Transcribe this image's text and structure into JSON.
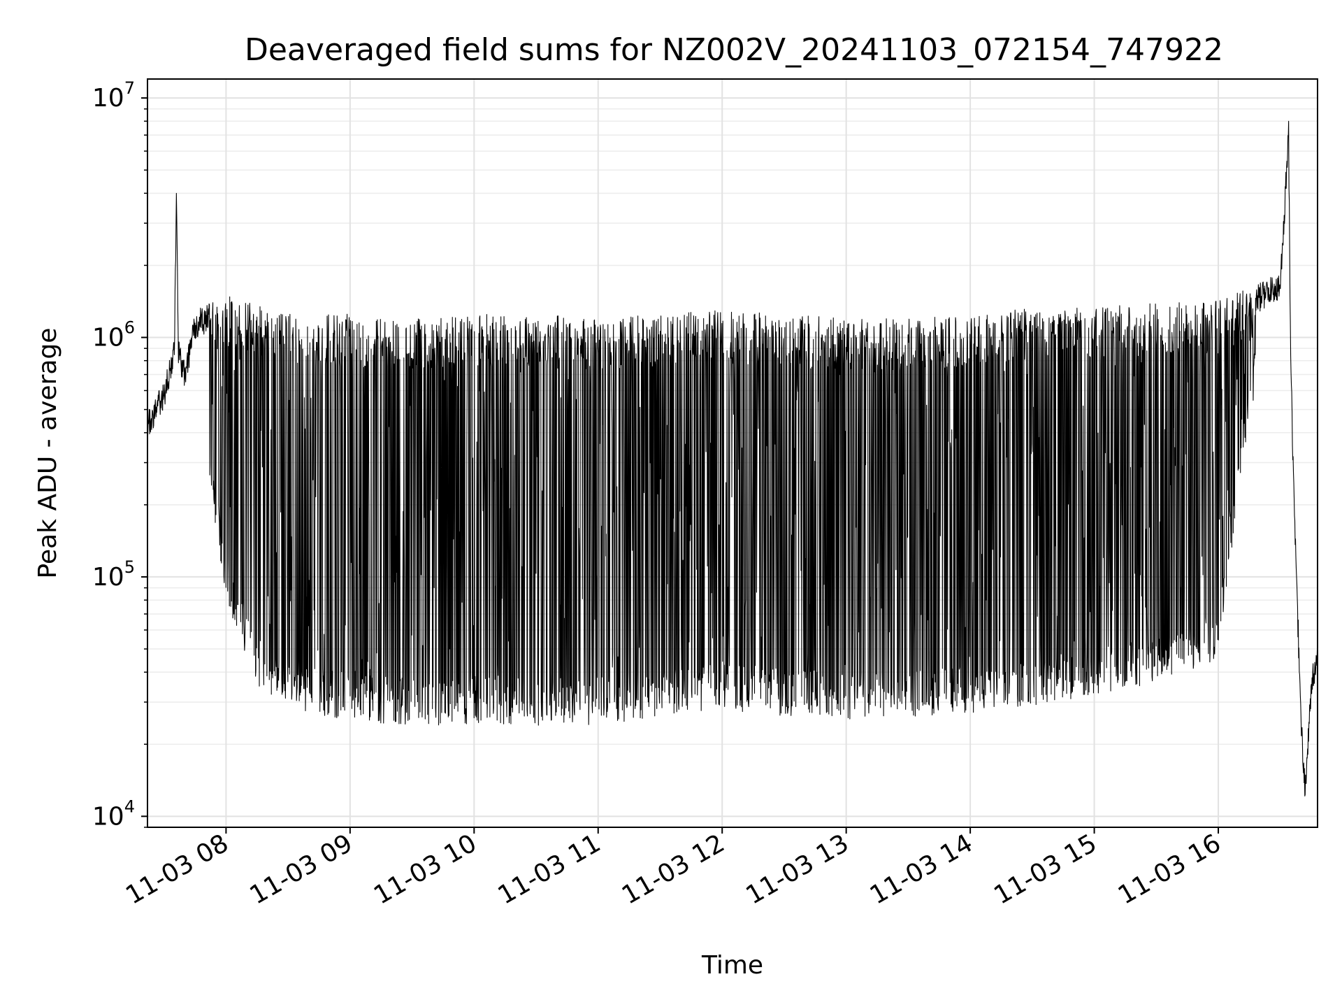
{
  "chart_data": {
    "type": "line",
    "title": "Deaveraged field sums for NZ002V_20241103_072154_747922",
    "xlabel": "Time",
    "ylabel": "Peak ADU - average",
    "yscale": "log",
    "ylim": [
      9000,
      12000000
    ],
    "xlim": [
      "2024-11-03 07:22",
      "2024-11-03 16:48"
    ],
    "grid": true,
    "line_color": "#000000",
    "x_ticks": [
      "11-03 08",
      "11-03 09",
      "11-03 10",
      "11-03 11",
      "11-03 12",
      "11-03 13",
      "11-03 14",
      "11-03 15",
      "11-03 16"
    ],
    "y_ticks": [
      {
        "base": "10",
        "exp": "4",
        "value": 10000
      },
      {
        "base": "10",
        "exp": "5",
        "value": 100000
      },
      {
        "base": "10",
        "exp": "6",
        "value": 1000000
      },
      {
        "base": "10",
        "exp": "7",
        "value": 10000000
      }
    ],
    "series": [
      {
        "description": "upper envelope of oscillating signal",
        "x": [
          "07:22",
          "07:30",
          "07:35",
          "07:36",
          "07:37",
          "07:40",
          "07:45",
          "08:00",
          "08:30",
          "09:00",
          "09:30",
          "10:00",
          "10:30",
          "11:00",
          "11:30",
          "12:00",
          "12:30",
          "13:00",
          "13:30",
          "14:00",
          "14:30",
          "15:00",
          "15:30",
          "16:00",
          "16:15",
          "16:30",
          "16:34",
          "16:35",
          "16:36",
          "16:38",
          "16:40",
          "16:42",
          "16:44",
          "16:46",
          "16:48"
        ],
        "y": [
          500000,
          650000,
          1000000,
          4000000,
          1000000,
          800000,
          1300000,
          1500000,
          1250000,
          1250000,
          1200000,
          1250000,
          1250000,
          1200000,
          1250000,
          1300000,
          1250000,
          1200000,
          1200000,
          1250000,
          1350000,
          1350000,
          1400000,
          1450000,
          1600000,
          1900000,
          8000000,
          1000000,
          400000,
          100000,
          30000,
          14000,
          30000,
          45000,
          55000
        ]
      },
      {
        "description": "lower envelope of oscillating signal",
        "x": [
          "07:50",
          "08:00",
          "08:15",
          "08:30",
          "09:00",
          "09:30",
          "10:00",
          "10:30",
          "11:00",
          "11:30",
          "12:00",
          "12:30",
          "13:00",
          "13:30",
          "14:00",
          "14:30",
          "15:00",
          "15:30",
          "16:00",
          "16:05",
          "16:10",
          "16:15",
          "16:20"
        ],
        "y": [
          300000,
          80000,
          35000,
          28000,
          25000,
          24000,
          24000,
          24000,
          24000,
          26000,
          28000,
          26000,
          25000,
          26000,
          27000,
          29000,
          32000,
          36000,
          45000,
          100000,
          250000,
          450000,
          700000
        ]
      }
    ]
  }
}
